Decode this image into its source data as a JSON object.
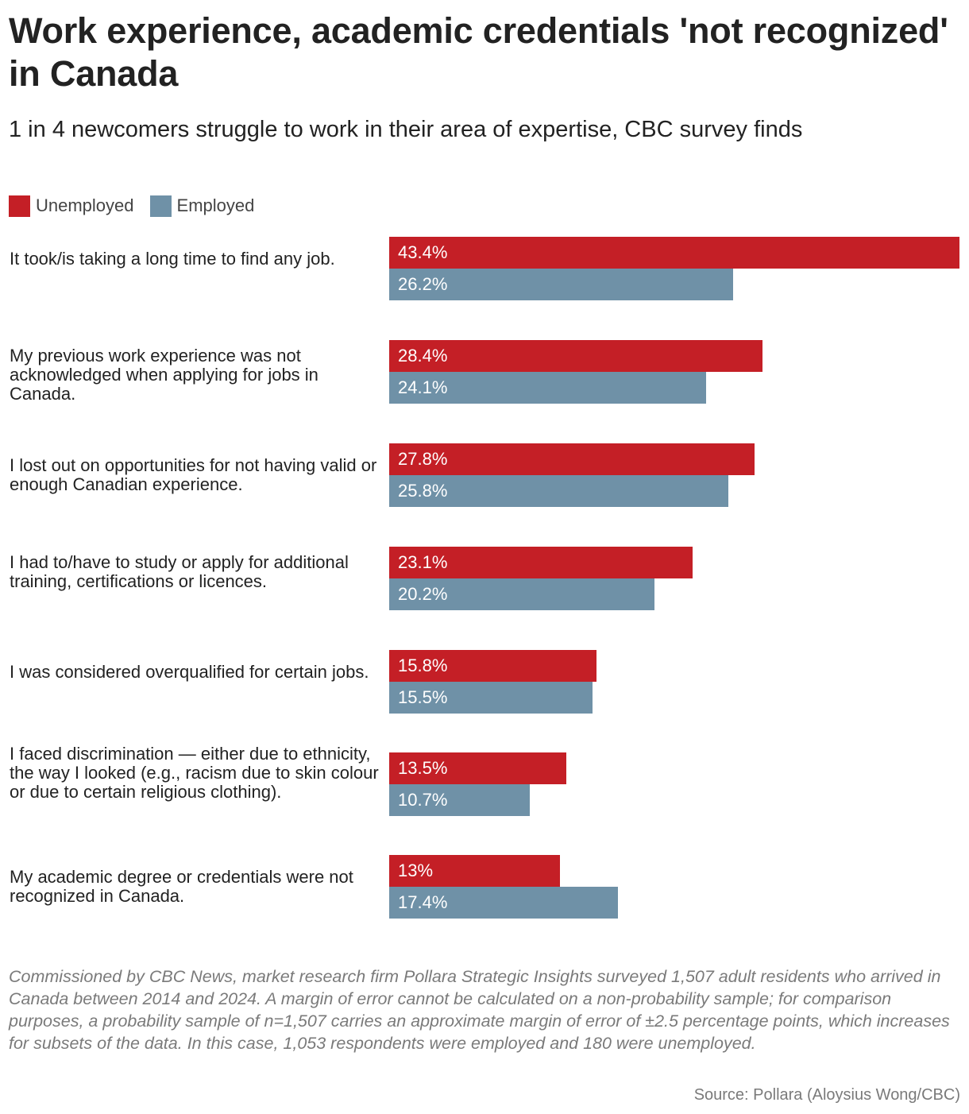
{
  "title": "Work experience, academic credentials 'not recognized' in Canada",
  "subtitle": "1 in 4 newcomers struggle to work in their area of expertise, CBC survey finds",
  "legend": [
    {
      "label": "Unemployed",
      "color": "#c41f26"
    },
    {
      "label": "Employed",
      "color": "#6f91a7"
    }
  ],
  "chart_data": {
    "type": "bar",
    "orientation": "horizontal",
    "legend_placement": "top-left",
    "grid": false,
    "xlim": [
      0,
      43.4
    ],
    "categories": [
      "It took/is taking a long time to find any job.",
      "My previous work experience was not acknowledged when applying for jobs in Canada.",
      "I lost out on opportunities for not having valid or enough Canadian experience.",
      "I had to/have to study or apply for additional training, certifications or licences.",
      "I was considered overqualified for certain jobs.",
      "I faced discrimination — either due to ethnicity, the way I looked (e.g., racism due to skin colour or due to certain religious clothing).",
      "My academic degree or credentials were not recognized in Canada."
    ],
    "series": [
      {
        "name": "Unemployed",
        "color": "#c41f26",
        "values": [
          43.4,
          28.4,
          27.8,
          23.1,
          15.8,
          13.5,
          13
        ],
        "labels": [
          "43.4%",
          "28.4%",
          "27.8%",
          "23.1%",
          "15.8%",
          "13.5%",
          "13%"
        ]
      },
      {
        "name": "Employed",
        "color": "#6f91a7",
        "values": [
          26.2,
          24.1,
          25.8,
          20.2,
          15.5,
          10.7,
          17.4
        ],
        "labels": [
          "26.2%",
          "24.1%",
          "25.8%",
          "20.2%",
          "15.5%",
          "10.7%",
          "17.4%"
        ]
      }
    ]
  },
  "note": "Commissioned by CBC News, market research firm Pollara Strategic Insights surveyed 1,507 adult residents who arrived in Canada between 2014 and 2024. A margin of error cannot be calculated on a non-probability sample; for comparison purposes, a probability sample of n=1,507 carries an approximate margin of error of ±2.5 percentage points, which increases for subsets of the data. In this case, 1,053 respondents were employed and 180 were unemployed.",
  "source": "Source: Pollara (Aloysius Wong/CBC)"
}
